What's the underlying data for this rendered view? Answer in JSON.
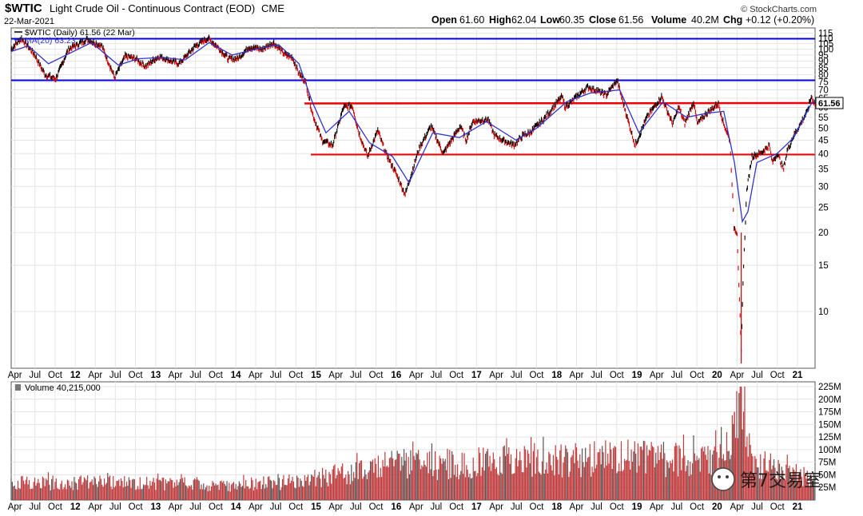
{
  "header": {
    "symbol": "$WTIC",
    "title": "Light Crude Oil - Continuous Contract (EOD)",
    "exchange": "CME",
    "date": "22-Mar-2021",
    "brand": "© StockCharts.com",
    "quote": {
      "open_label": "Open",
      "open": "61.60",
      "high_label": "High",
      "high": "62.04",
      "low_label": "Low",
      "low": "60.35",
      "close_label": "Close",
      "close": "61.56",
      "volume_label": "Volume",
      "volume": "40.2M",
      "chg_label": "Chg",
      "chg": "+0.12 (+0.20%)"
    }
  },
  "legend": {
    "price": "$WTIC (Daily) 61.56 (22 Mar)",
    "ma": "MA(20) 63.23",
    "volume": "Volume 40,215,000"
  },
  "last_price_label": "61.56",
  "watermark": "第7交易室",
  "colors": {
    "price": "#000000",
    "ma": "#3333cc",
    "down": "#cc0000",
    "blue_line": "#0000dd",
    "red_line": "#ee0000",
    "volume_bar": "#c0393b",
    "volume_bar_dark": "#555555",
    "grid": "#e4e4e4"
  },
  "chart_data": [
    {
      "type": "line",
      "title": "$WTIC (Daily) 61.56 (22 Mar)",
      "y_scale": "log",
      "ylim": [
        6.5,
        118
      ],
      "y_ticks": [
        10,
        15,
        20,
        25,
        30,
        35,
        40,
        45,
        50,
        55,
        60,
        65,
        70,
        75,
        80,
        85,
        90,
        95,
        100,
        105,
        110,
        115
      ],
      "x_ticks": [
        "Apr",
        "Jul",
        "Oct",
        "12",
        "Apr",
        "Jul",
        "Oct",
        "13",
        "Apr",
        "Jul",
        "Oct",
        "14",
        "Apr",
        "Jul",
        "Oct",
        "15",
        "Apr",
        "Jul",
        "Oct",
        "16",
        "Apr",
        "Jul",
        "Oct",
        "17",
        "Apr",
        "Jul",
        "Oct",
        "18",
        "Apr",
        "Jul",
        "Oct",
        "19",
        "Apr",
        "Jul",
        "Oct",
        "20",
        "Apr",
        "Jul",
        "Oct",
        "21"
      ],
      "xlim": [
        "2011-03-15",
        "2021-03-22"
      ],
      "grid": true,
      "series": [
        {
          "name": "$WTIC",
          "x": [
            "2011-03-15",
            "2011-05-01",
            "2011-07-01",
            "2011-08-15",
            "2011-10-04",
            "2011-12-01",
            "2012-02-24",
            "2012-05-01",
            "2012-06-28",
            "2012-08-15",
            "2012-10-01",
            "2012-11-15",
            "2013-01-15",
            "2013-04-15",
            "2013-05-15",
            "2013-07-01",
            "2013-08-28",
            "2013-10-15",
            "2013-11-27",
            "2014-01-10",
            "2014-03-01",
            "2014-05-01",
            "2014-06-20",
            "2014-07-15",
            "2014-08-15",
            "2014-09-15",
            "2014-10-15",
            "2014-11-15",
            "2014-12-15",
            "2015-01-28",
            "2015-03-17",
            "2015-05-06",
            "2015-06-15",
            "2015-07-15",
            "2015-08-24",
            "2015-10-09",
            "2015-11-15",
            "2015-12-21",
            "2016-02-11",
            "2016-04-15",
            "2016-06-08",
            "2016-08-02",
            "2016-10-19",
            "2016-11-14",
            "2016-12-15",
            "2017-02-23",
            "2017-03-22",
            "2017-05-01",
            "2017-06-21",
            "2017-08-01",
            "2017-09-01",
            "2017-11-01",
            "2018-01-25",
            "2018-02-09",
            "2018-05-22",
            "2018-08-15",
            "2018-10-03",
            "2018-11-15",
            "2018-12-24",
            "2019-02-15",
            "2019-04-23",
            "2019-06-12",
            "2019-07-11",
            "2019-08-07",
            "2019-09-16",
            "2019-10-03",
            "2019-11-15",
            "2020-01-07",
            "2020-01-31",
            "2020-02-28",
            "2020-03-09",
            "2020-03-18",
            "2020-04-01",
            "2020-04-20",
            "2020-04-28",
            "2020-05-15",
            "2020-06-08",
            "2020-07-15",
            "2020-08-26",
            "2020-09-08",
            "2020-10-01",
            "2020-10-30",
            "2020-11-15",
            "2020-12-15",
            "2021-01-15",
            "2021-02-15",
            "2021-03-05",
            "2021-03-22"
          ],
          "values": [
            100,
            110,
            95,
            80,
            77,
            100,
            109,
            103,
            78,
            94,
            92,
            86,
            94,
            88,
            93,
            103,
            110,
            101,
            92,
            92,
            102,
            100,
            106,
            101,
            95,
            93,
            81,
            75,
            57,
            45,
            43,
            60,
            61,
            48,
            39,
            49,
            40,
            35,
            28,
            42,
            51,
            40,
            51,
            45,
            53,
            54,
            47,
            45,
            43,
            47,
            48,
            54,
            66,
            60,
            72,
            67,
            76,
            56,
            43,
            55,
            66,
            52,
            60,
            52,
            63,
            52,
            57,
            62,
            52,
            45,
            31,
            21,
            20,
            7,
            13,
            29,
            39,
            40,
            43,
            37,
            40,
            35,
            41,
            47,
            52,
            58,
            66,
            61.56
          ]
        },
        {
          "name": "MA(20) 63.23",
          "x": [
            "2011-03-15",
            "2011-06-01",
            "2011-09-01",
            "2011-12-01",
            "2012-03-15",
            "2012-07-15",
            "2012-10-15",
            "2013-02-01",
            "2013-05-15",
            "2013-09-01",
            "2013-12-15",
            "2014-04-01",
            "2014-07-15",
            "2014-10-15",
            "2014-12-15",
            "2015-02-15",
            "2015-06-01",
            "2015-09-01",
            "2015-12-15",
            "2016-02-28",
            "2016-06-15",
            "2016-10-15",
            "2017-02-15",
            "2017-06-30",
            "2017-10-01",
            "2018-02-15",
            "2018-06-01",
            "2018-10-15",
            "2019-01-10",
            "2019-04-30",
            "2019-08-15",
            "2019-11-15",
            "2020-01-31",
            "2020-03-20",
            "2020-04-25",
            "2020-05-20",
            "2020-06-30",
            "2020-09-30",
            "2020-12-15",
            "2021-03-05",
            "2021-03-22"
          ],
          "values": [
            98,
            103,
            88,
            96,
            106,
            87,
            92,
            93,
            91,
            106,
            95,
            100,
            104,
            88,
            63,
            48,
            58,
            44,
            39,
            31,
            48,
            46,
            53,
            45,
            50,
            63,
            68,
            70,
            48,
            63,
            55,
            57,
            58,
            37,
            22,
            24,
            37,
            40,
            46,
            62,
            63.23
          ]
        }
      ]
    },
    {
      "type": "bar",
      "title": "Volume 40,215,000",
      "ylim": [
        0,
        225
      ],
      "y_ticks_label": [
        "25M",
        "50M",
        "75M",
        "100M",
        "125M",
        "150M",
        "175M",
        "200M",
        "225M"
      ],
      "y_ticks": [
        25,
        50,
        75,
        100,
        125,
        150,
        175,
        200,
        225
      ],
      "x": [
        "2011-03-15",
        "2012-01-01",
        "2013-01-01",
        "2014-01-01",
        "2014-10-01",
        "2015-06-01",
        "2016-01-01",
        "2016-06-01",
        "2017-01-01",
        "2017-09-01",
        "2018-06-01",
        "2019-01-01",
        "2019-10-01",
        "2020-01-15",
        "2020-03-15",
        "2020-04-20",
        "2020-06-01",
        "2020-10-01",
        "2021-03-22"
      ],
      "values": [
        35,
        34,
        33,
        30,
        38,
        55,
        75,
        70,
        75,
        78,
        80,
        85,
        80,
        88,
        120,
        220,
        78,
        62,
        40.2
      ]
    }
  ]
}
